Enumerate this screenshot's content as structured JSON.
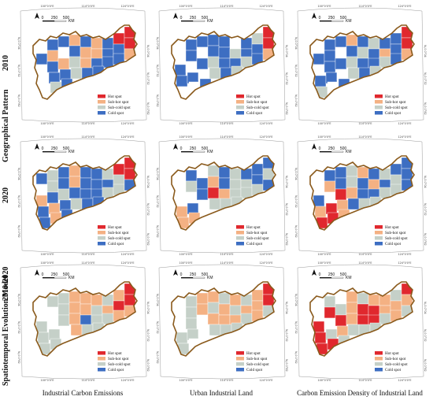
{
  "rows": [
    {
      "label": "2010"
    },
    {
      "label": "2020"
    },
    {
      "label": "2010-2020"
    }
  ],
  "row_group_labels": {
    "pattern": "Geographical Pattern",
    "evolution": "Spatiotemporal Evolution Model"
  },
  "columns": [
    {
      "label": "Industrial Carbon Emissions"
    },
    {
      "label": "Urban Industrial Land"
    },
    {
      "label": "Carbon Emission Density of Industrial Land"
    }
  ],
  "scale_bar": {
    "zero": "0",
    "mid": "250",
    "end": "500",
    "unit": "KM"
  },
  "top_ticks": [
    "100°0'0\"E",
    "114°0'0\"E",
    "124°0'0\"E"
  ],
  "bottom_ticks": [
    "100°0'0\"E",
    "114°0'0\"E",
    "124°0'0\"E"
  ],
  "side_ticks": [
    "N„0.0°04",
    "N„0.0°32",
    "N„0.0°82"
  ],
  "legend": [
    {
      "label": "Hot spot",
      "color": "#e0282e"
    },
    {
      "label": "Sub-hot spot",
      "color": "#f4b183"
    },
    {
      "label": "Sub-cold spot",
      "color": "#c5d0c8"
    },
    {
      "label": "Cold spot",
      "color": "#3d6ec2"
    }
  ],
  "colors": {
    "outline": "#8a5a1c",
    "white": "#ffffff"
  }
}
